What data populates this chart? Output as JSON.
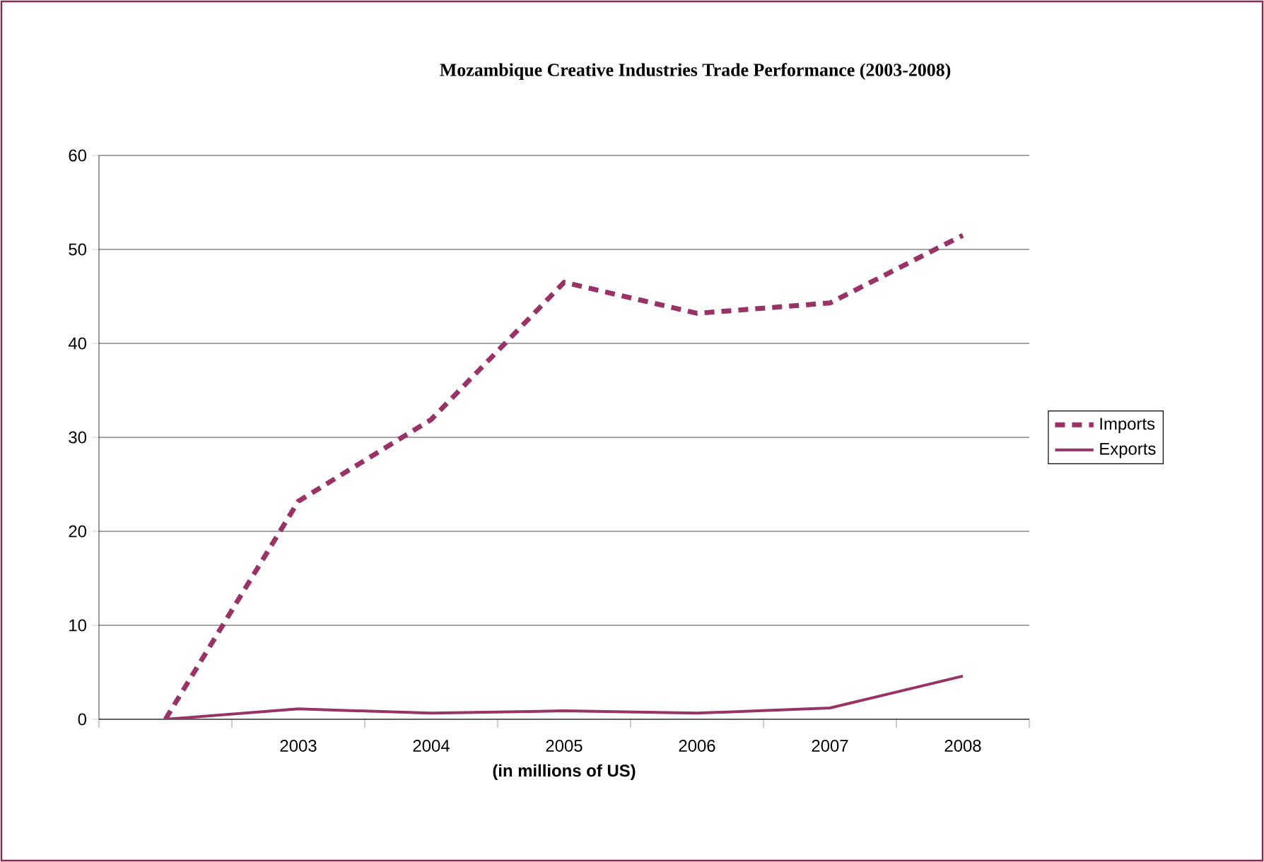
{
  "chart_data": {
    "type": "line",
    "title": "Mozambique Creative Industries Trade Performance (2003-2008)",
    "xlabel": "(in millions of US)",
    "categories": [
      null,
      "2003",
      "2004",
      "2005",
      "2006",
      "2007",
      "2008"
    ],
    "series": [
      {
        "name": "Imports",
        "color": "#993366",
        "line_style": "dashed",
        "values": [
          0,
          23.2,
          31.9,
          46.5,
          43.2,
          44.3,
          51.5
        ]
      },
      {
        "name": "Exports",
        "color": "#993366",
        "line_style": "solid",
        "values": [
          0,
          1.1,
          0.65,
          0.9,
          0.65,
          1.2,
          4.6
        ]
      }
    ],
    "ylim": [
      0,
      60
    ],
    "yticks": [
      0,
      10,
      20,
      30,
      40,
      50,
      60
    ],
    "grid": "y",
    "legend": "right",
    "marker": "none"
  }
}
